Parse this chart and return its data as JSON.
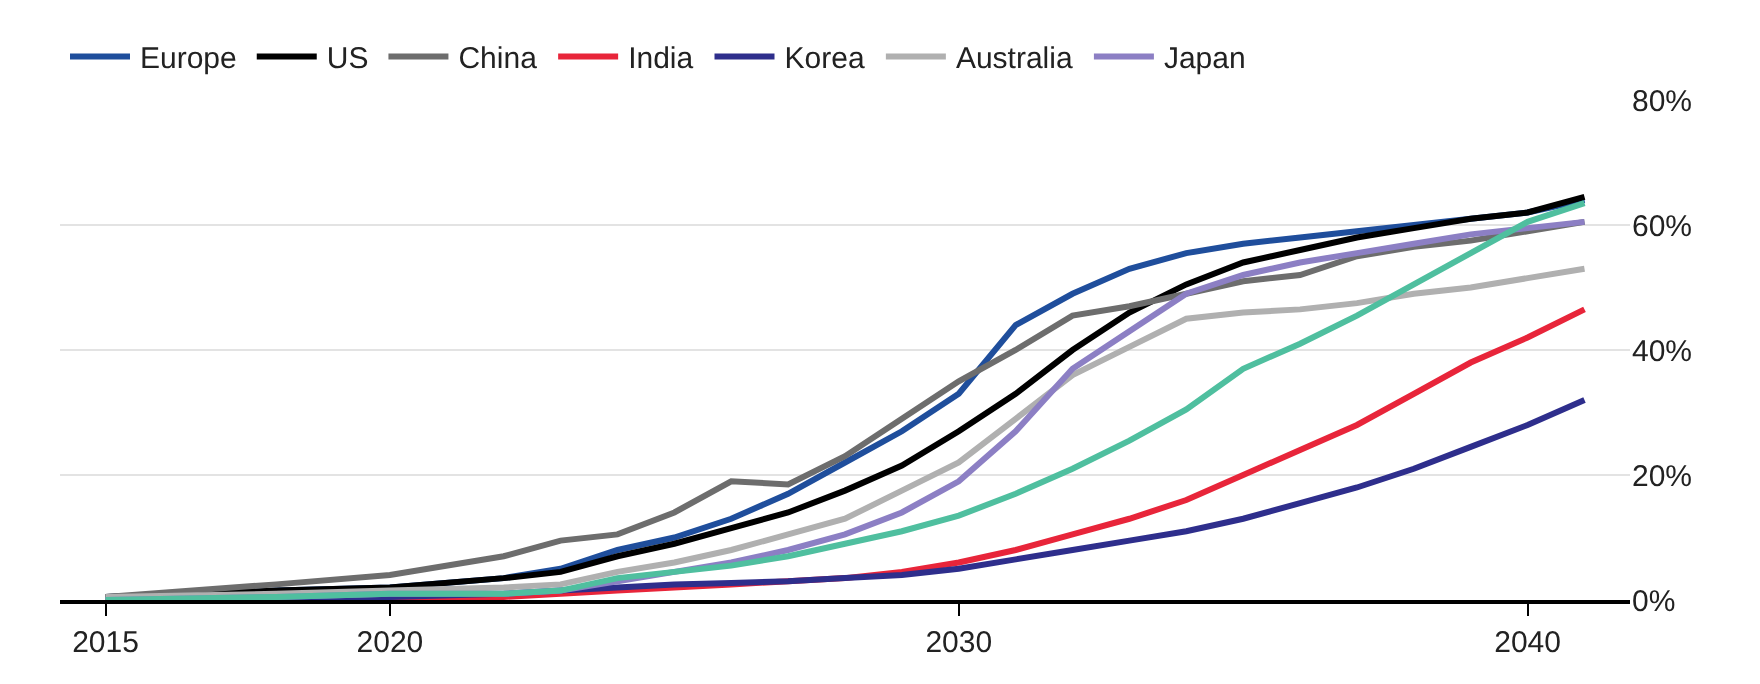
{
  "chart_data": {
    "type": "line",
    "x": [
      2015,
      2018,
      2020,
      2022,
      2023,
      2024,
      2025,
      2026,
      2027,
      2028,
      2029,
      2030,
      2031,
      2032,
      2033,
      2034,
      2035,
      2036,
      2037,
      2038,
      2039,
      2040,
      2041
    ],
    "series": [
      {
        "name": "Europe",
        "color": "#1f4e9c",
        "values": [
          0.5,
          1.5,
          2,
          3.5,
          5,
          8,
          10,
          13,
          17,
          22,
          27,
          33,
          44,
          49,
          53,
          55.5,
          57,
          58,
          59,
          60,
          61,
          62,
          64
        ]
      },
      {
        "name": "US",
        "color": "#000000",
        "values": [
          0.5,
          1.5,
          2,
          3.5,
          4.5,
          7,
          9,
          11.5,
          14,
          17.5,
          21.5,
          27,
          33,
          40,
          46,
          50.5,
          54,
          56,
          58,
          59.5,
          61,
          62,
          64.5
        ]
      },
      {
        "name": "China",
        "color": "#6d6d6d",
        "values": [
          0.5,
          2.5,
          4,
          7,
          9.5,
          10.5,
          14,
          19,
          18.5,
          23,
          29,
          35,
          40,
          45.5,
          47,
          49,
          51,
          52,
          55,
          56.5,
          57.5,
          59,
          60.5
        ]
      },
      {
        "name": "India",
        "color": "#e8253a",
        "values": [
          0,
          0,
          0,
          0.5,
          1,
          1.5,
          2,
          2.5,
          3,
          3.5,
          4.5,
          6,
          8,
          10.5,
          13,
          16,
          20,
          24,
          28,
          33,
          38,
          42,
          46.5
        ]
      },
      {
        "name": "Korea",
        "color": "#2e2e8c",
        "values": [
          0,
          0,
          0.5,
          1,
          1.5,
          2,
          2.5,
          2.7,
          3,
          3.5,
          4,
          5,
          6.5,
          8,
          9.5,
          11,
          13,
          15.5,
          18,
          21,
          24.5,
          28,
          32
        ]
      },
      {
        "name": "Australia",
        "color": "#b0b0b0",
        "values": [
          0.5,
          1,
          1.5,
          2,
          2.5,
          4.5,
          6,
          8,
          10.5,
          13,
          17.5,
          22,
          29,
          36,
          40.5,
          45,
          46,
          46.5,
          47.5,
          49,
          50,
          51.5,
          53
        ]
      },
      {
        "name": "Japan",
        "color": "#8c7fc4",
        "values": [
          0,
          0.5,
          1,
          1,
          1.5,
          3,
          4.5,
          6,
          8,
          10.5,
          14,
          19,
          27,
          37,
          43,
          49,
          52,
          54,
          55.5,
          57,
          58.5,
          59.5,
          60.5
        ]
      },
      {
        "color": "#4fbf9f",
        "values": [
          0,
          0.5,
          1,
          1,
          1.5,
          3.5,
          4.5,
          5.5,
          7,
          9,
          11,
          13.5,
          17,
          21,
          25.5,
          30.5,
          37,
          41,
          45.5,
          50.5,
          55.5,
          60.5,
          63.5
        ]
      }
    ],
    "xlim": [
      2014.2,
      2041.8
    ],
    "xticks": [
      2015,
      2020,
      2030,
      2040
    ],
    "ylim": [
      0,
      80
    ],
    "yticks": [
      {
        "value": 0,
        "label": "0%"
      },
      {
        "value": 20,
        "label": "20%"
      },
      {
        "value": 40,
        "label": "40%"
      },
      {
        "value": 60,
        "label": "60%"
      },
      {
        "value": 80,
        "label": "80%"
      }
    ],
    "grid": "y",
    "legend": "top left",
    "marker": "none",
    "line_style": "solid"
  }
}
